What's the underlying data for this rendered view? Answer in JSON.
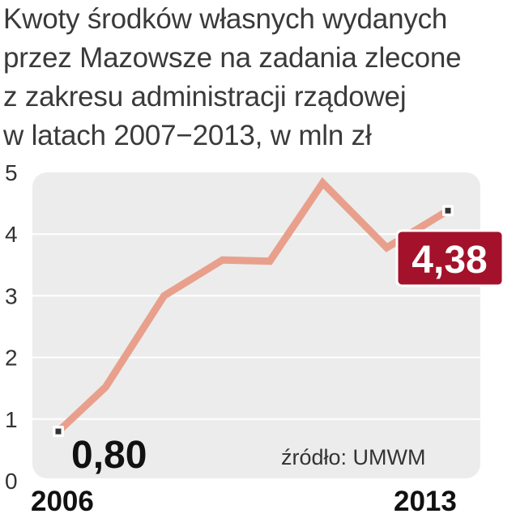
{
  "title_lines": [
    "Kwoty środków własnych wydanych",
    "przez Mazowsze na zadania zlecone",
    "z zakresu administracji rządowej",
    "w latach 2007−2013, w mln zł"
  ],
  "source": "źródło: UMWM",
  "colors": {
    "line": "#e8a08c",
    "plot_bg": "#ececec",
    "badge": "#a3122a",
    "grid": "#ffffff"
  },
  "chart_data": {
    "type": "line",
    "title": "Kwoty środków własnych wydanych przez Mazowsze na zadania zlecone z zakresu administracji rządowej w latach 2007−2013, w mln zł",
    "x": [
      2006,
      2006.85,
      2007.9,
      2008.95,
      2009.8,
      2010.75,
      2011.9,
      2013
    ],
    "y": [
      0.8,
      1.52,
      3.0,
      3.58,
      3.56,
      4.83,
      3.78,
      4.38
    ],
    "xtick_labels": [
      "2006",
      "2013"
    ],
    "yticks": [
      "0",
      "1",
      "2",
      "3",
      "4",
      "5"
    ],
    "ylim": [
      0,
      5
    ],
    "grid": true,
    "data_labels": {
      "start": "0,80",
      "end": "4,38"
    },
    "xlabel": "",
    "ylabel": ""
  }
}
